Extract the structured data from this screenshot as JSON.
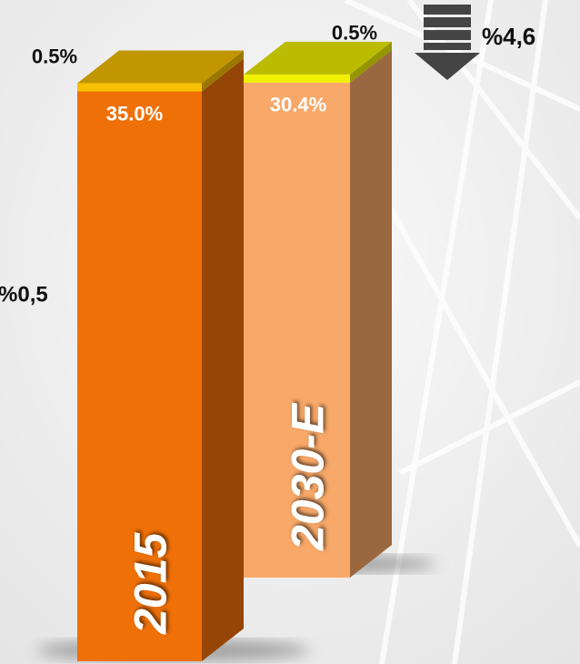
{
  "chart_data": {
    "type": "bar",
    "stacked": true,
    "categories": [
      "2015",
      "2030-E"
    ],
    "series": [
      {
        "colors": [
          "#f07008",
          "#f8a868"
        ],
        "values": [
          35.0,
          30.4
        ],
        "value_labels": [
          "35.0%",
          "30.4%"
        ]
      },
      {
        "colors": [
          "#f8c000",
          "#f0f000"
        ],
        "values": [
          0.5,
          0.5
        ],
        "value_labels": [
          "0.5%",
          "0.5%"
        ]
      }
    ],
    "annotations": [
      "%0,5",
      "%4,6"
    ]
  }
}
